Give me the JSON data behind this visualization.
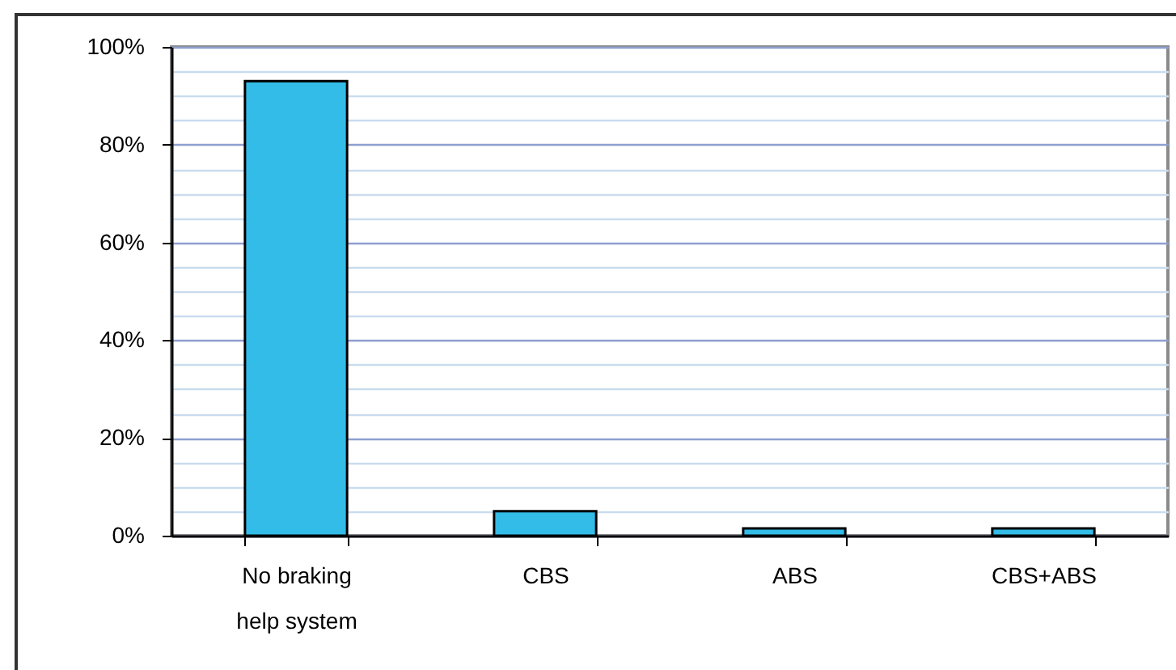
{
  "chart_data": {
    "type": "bar",
    "categories": [
      "No braking help system",
      "CBS",
      "ABS",
      "CBS+ABS"
    ],
    "values": [
      93,
      5,
      1.5,
      1.5
    ],
    "color": "#33bce8",
    "ylim": [
      0,
      100
    ],
    "yticks": [
      {
        "value": 0,
        "label": "0%"
      },
      {
        "value": 5,
        "label": null
      },
      {
        "value": 10,
        "label": null
      },
      {
        "value": 15,
        "label": null
      },
      {
        "value": 20,
        "label": "20%"
      },
      {
        "value": 25,
        "label": null
      },
      {
        "value": 30,
        "label": null
      },
      {
        "value": 35,
        "label": null
      },
      {
        "value": 40,
        "label": "40%"
      },
      {
        "value": 45,
        "label": null
      },
      {
        "value": 50,
        "label": null
      },
      {
        "value": 55,
        "label": null
      },
      {
        "value": 60,
        "label": "60%"
      },
      {
        "value": 65,
        "label": null
      },
      {
        "value": 70,
        "label": null
      },
      {
        "value": 75,
        "label": null
      },
      {
        "value": 80,
        "label": "80%"
      },
      {
        "value": 85,
        "label": null
      },
      {
        "value": 90,
        "label": null
      },
      {
        "value": 95,
        "label": null
      },
      {
        "value": 100,
        "label": "100%"
      }
    ],
    "grid": "y"
  }
}
